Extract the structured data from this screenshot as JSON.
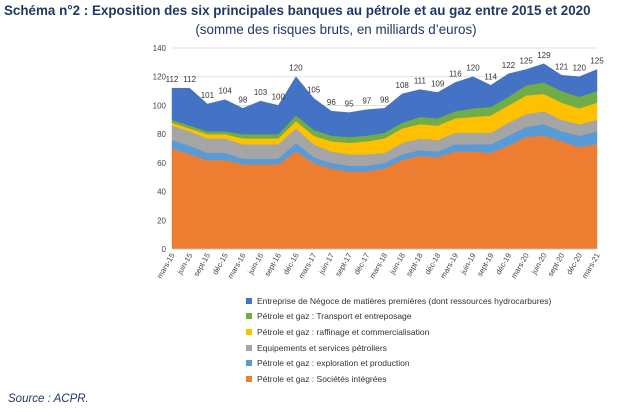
{
  "header": {
    "title": "Schéma n°2 : Exposition des six principales banques au pétrole et au gaz entre 2015 et 2020",
    "subtitle": "(somme des risques bruts, en milliards d’euros)"
  },
  "source": "Source : ACPR.",
  "chart_data": {
    "type": "area",
    "stacked": true,
    "ylim": [
      0,
      140
    ],
    "yticks": [
      0,
      20,
      40,
      60,
      80,
      100,
      120,
      140
    ],
    "grid": true,
    "legend_position": "bottom",
    "categories": [
      "mars-15",
      "juin-15",
      "sept-15",
      "déc-15",
      "mars-16",
      "juin-16",
      "sept-16",
      "déc-16",
      "mars-17",
      "juin-17",
      "sept-17",
      "déc-17",
      "mars-18",
      "juin-18",
      "sept-18",
      "déc-18",
      "mars-19",
      "juin-19",
      "sept-19",
      "déc-19",
      "mars-20",
      "juin-20",
      "sept-20",
      "déc-20",
      "mars-21"
    ],
    "total_labels": [
      "112",
      "112",
      "101",
      "104",
      "98",
      "103",
      "100",
      "120",
      "105",
      "96",
      "95",
      "97",
      "98",
      "108",
      "111",
      "109",
      "116",
      "120",
      "114",
      "122",
      "125",
      "129",
      "121",
      "120",
      "125"
    ],
    "series": [
      {
        "name": "Pétrole et gaz : Sociétés intégrées",
        "color": "#ED7D31",
        "values": [
          70,
          66,
          62,
          62,
          59,
          59,
          59,
          68,
          60,
          56,
          54,
          54,
          56,
          62,
          65,
          64,
          68,
          68,
          67,
          72,
          78,
          79,
          75,
          71,
          73
        ]
      },
      {
        "name": "Pétrole et gaz :  exploration et production",
        "color": "#5B9BD5",
        "values": [
          6,
          6,
          5,
          5,
          4,
          4,
          4,
          6,
          4,
          4,
          4,
          4,
          4,
          4,
          4,
          4,
          5,
          5,
          6,
          7,
          7,
          8,
          7,
          8,
          9
        ]
      },
      {
        "name": "Equipements et services pétroliers",
        "color": "#A5A5A5",
        "values": [
          10,
          10,
          10,
          10,
          10,
          10,
          10,
          10,
          9,
          8,
          8,
          8,
          7,
          8,
          8,
          8,
          8,
          8,
          8,
          9,
          9,
          9,
          8,
          8,
          8
        ]
      },
      {
        "name": "Pétrole et gaz : raffinage et commercialisation",
        "color": "#FFC000",
        "values": [
          2,
          2,
          3,
          3,
          4,
          4,
          4,
          5,
          6,
          7,
          8,
          9,
          10,
          10,
          10,
          10,
          10,
          11,
          12,
          12,
          13,
          12,
          12,
          11,
          12
        ]
      },
      {
        "name": "Pétrole et gaz : Transport et entreposage",
        "color": "#70AD47",
        "values": [
          2,
          2,
          2,
          2,
          3,
          3,
          3,
          4,
          4,
          4,
          4,
          4,
          4,
          4,
          5,
          5,
          5,
          6,
          6,
          6,
          7,
          8,
          8,
          8,
          8
        ]
      },
      {
        "name": "Entreprise de Négoce de matières premières (dont ressources hydrocarbures)",
        "color": "#4472C4",
        "values": [
          22,
          26,
          19,
          22,
          18,
          23,
          20,
          27,
          22,
          17,
          17,
          18,
          17,
          20,
          19,
          18,
          20,
          22,
          15,
          16,
          11,
          13,
          11,
          14,
          15
        ]
      }
    ],
    "legend_order": [
      5,
      4,
      3,
      2,
      1,
      0
    ]
  }
}
